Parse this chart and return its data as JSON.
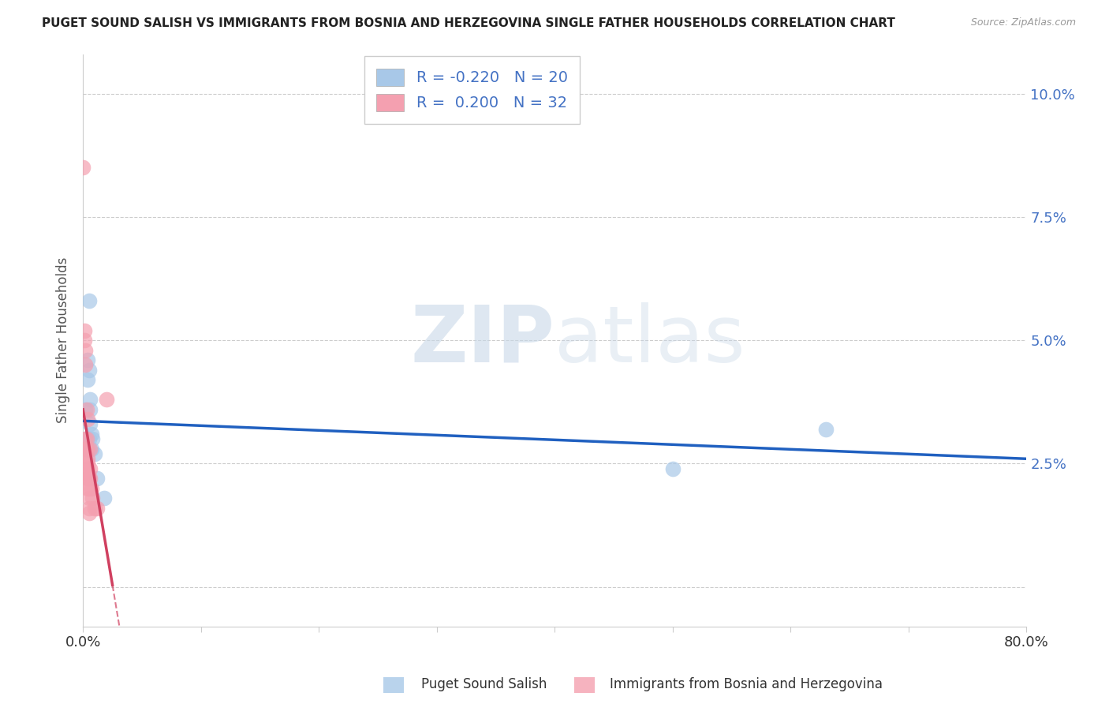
{
  "title": "PUGET SOUND SALISH VS IMMIGRANTS FROM BOSNIA AND HERZEGOVINA SINGLE FATHER HOUSEHOLDS CORRELATION CHART",
  "source": "Source: ZipAtlas.com",
  "ylabel": "Single Father Households",
  "xlim": [
    0.0,
    0.8
  ],
  "ylim": [
    -0.008,
    0.108
  ],
  "yticks": [
    0.0,
    0.025,
    0.05,
    0.075,
    0.1
  ],
  "ytick_labels": [
    "",
    "2.5%",
    "5.0%",
    "7.5%",
    "10.0%"
  ],
  "xticks": [
    0.0,
    0.1,
    0.2,
    0.3,
    0.4,
    0.5,
    0.6,
    0.7,
    0.8
  ],
  "blue_label": "Puget Sound Salish",
  "pink_label": "Immigrants from Bosnia and Herzegovina",
  "blue_R": -0.22,
  "blue_N": 20,
  "pink_R": 0.2,
  "pink_N": 32,
  "watermark_zip": "ZIP",
  "watermark_atlas": "atlas",
  "blue_color": "#a8c8e8",
  "pink_color": "#f4a0b0",
  "blue_line_color": "#2060c0",
  "pink_line_color": "#d04060",
  "blue_scatter": [
    [
      0.002,
      0.036
    ],
    [
      0.003,
      0.03
    ],
    [
      0.003,
      0.028
    ],
    [
      0.004,
      0.046
    ],
    [
      0.004,
      0.042
    ],
    [
      0.005,
      0.058
    ],
    [
      0.005,
      0.03
    ],
    [
      0.005,
      0.028
    ],
    [
      0.005,
      0.044
    ],
    [
      0.006,
      0.038
    ],
    [
      0.006,
      0.036
    ],
    [
      0.006,
      0.033
    ],
    [
      0.007,
      0.031
    ],
    [
      0.007,
      0.028
    ],
    [
      0.008,
      0.03
    ],
    [
      0.01,
      0.027
    ],
    [
      0.012,
      0.022
    ],
    [
      0.018,
      0.018
    ],
    [
      0.5,
      0.024
    ],
    [
      0.63,
      0.032
    ]
  ],
  "pink_scatter": [
    [
      0.0,
      0.085
    ],
    [
      0.001,
      0.052
    ],
    [
      0.001,
      0.05
    ],
    [
      0.002,
      0.048
    ],
    [
      0.002,
      0.03
    ],
    [
      0.002,
      0.028
    ],
    [
      0.002,
      0.026
    ],
    [
      0.002,
      0.045
    ],
    [
      0.003,
      0.03
    ],
    [
      0.003,
      0.028
    ],
    [
      0.003,
      0.036
    ],
    [
      0.004,
      0.034
    ],
    [
      0.004,
      0.028
    ],
    [
      0.004,
      0.026
    ],
    [
      0.004,
      0.025
    ],
    [
      0.004,
      0.024
    ],
    [
      0.004,
      0.023
    ],
    [
      0.004,
      0.022
    ],
    [
      0.004,
      0.02
    ],
    [
      0.005,
      0.022
    ],
    [
      0.005,
      0.02
    ],
    [
      0.005,
      0.018
    ],
    [
      0.005,
      0.016
    ],
    [
      0.005,
      0.015
    ],
    [
      0.006,
      0.028
    ],
    [
      0.006,
      0.024
    ],
    [
      0.006,
      0.022
    ],
    [
      0.007,
      0.02
    ],
    [
      0.008,
      0.018
    ],
    [
      0.01,
      0.016
    ],
    [
      0.012,
      0.016
    ],
    [
      0.02,
      0.038
    ]
  ],
  "grid_color": "#cccccc",
  "spine_color": "#cccccc"
}
